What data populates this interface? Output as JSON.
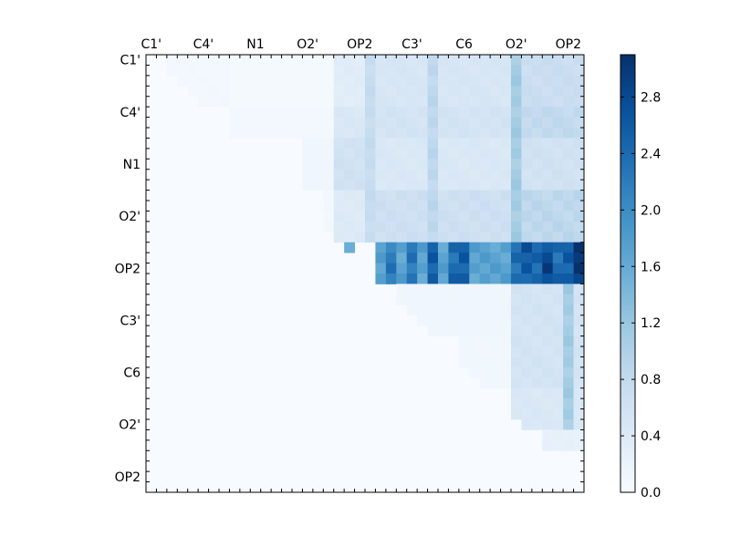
{
  "chart_data": {
    "type": "heatmap",
    "title": "",
    "xlabel": "",
    "ylabel": "",
    "n": 42,
    "x_tick_labels": [
      "C1'",
      "C4'",
      "N1",
      "O2'",
      "OP2",
      "C3'",
      "C6",
      "O2'",
      "OP2"
    ],
    "y_tick_labels": [
      "C1'",
      "C4'",
      "N1",
      "O2'",
      "OP2",
      "C3'",
      "C6",
      "O2'",
      "OP2"
    ],
    "tick_positions": [
      0.5,
      5.5,
      10.5,
      15.5,
      20.5,
      25.5,
      30.5,
      35.5,
      40.5
    ],
    "colorscale": [
      "#f7fbff",
      "#deebf7",
      "#c6dbef",
      "#9ecae1",
      "#6baed6",
      "#4292c6",
      "#2171b5",
      "#08519c",
      "#08306b"
    ],
    "zlim": [
      0,
      3.1
    ],
    "colorbar_ticks": [
      "0.0",
      "0.4",
      "0.8",
      "1.2",
      "1.6",
      "2.0",
      "2.4",
      "2.8"
    ],
    "colorbar_tick_values": [
      0.0,
      0.4,
      0.8,
      1.2,
      1.6,
      2.0,
      2.4,
      2.8
    ],
    "blocks": [
      {
        "r0": 0,
        "r1": 5,
        "c0": 2,
        "c1": 8,
        "v": 0.08
      },
      {
        "r0": 0,
        "r1": 5,
        "c0": 8,
        "c1": 18,
        "v": 0.05
      },
      {
        "r0": 0,
        "r1": 5,
        "c0": 18,
        "c1": 21,
        "v": 0.35
      },
      {
        "r0": 0,
        "r1": 5,
        "c0": 21,
        "c1": 35,
        "v": 0.5
      },
      {
        "r0": 0,
        "r1": 5,
        "c0": 35,
        "c1": 42,
        "v": 0.7
      },
      {
        "r0": 5,
        "r1": 8,
        "c0": 8,
        "c1": 18,
        "v": 0.07
      },
      {
        "r0": 5,
        "r1": 8,
        "c0": 18,
        "c1": 21,
        "v": 0.45
      },
      {
        "r0": 5,
        "r1": 8,
        "c0": 21,
        "c1": 35,
        "v": 0.55
      },
      {
        "r0": 5,
        "r1": 8,
        "c0": 35,
        "c1": 42,
        "v": 0.8
      },
      {
        "r0": 8,
        "r1": 13,
        "c0": 15,
        "c1": 18,
        "v": 0.12
      },
      {
        "r0": 8,
        "r1": 13,
        "c0": 18,
        "c1": 21,
        "v": 0.6
      },
      {
        "r0": 8,
        "r1": 13,
        "c0": 21,
        "c1": 35,
        "v": 0.45
      },
      {
        "r0": 8,
        "r1": 13,
        "c0": 35,
        "c1": 42,
        "v": 0.6
      },
      {
        "r0": 13,
        "r1": 18,
        "c0": 17,
        "c1": 18,
        "v": 0.08
      },
      {
        "r0": 13,
        "r1": 18,
        "c0": 18,
        "c1": 21,
        "v": 0.4
      },
      {
        "r0": 13,
        "r1": 18,
        "c0": 21,
        "c1": 35,
        "v": 0.65
      },
      {
        "r0": 13,
        "r1": 18,
        "c0": 35,
        "c1": 42,
        "v": 0.85
      },
      {
        "r0": 18,
        "r1": 22,
        "c0": 22,
        "c1": 35,
        "v": 1.7
      },
      {
        "r0": 18,
        "r1": 22,
        "c0": 35,
        "c1": 42,
        "v": 2.4
      },
      {
        "r0": 22,
        "r1": 27,
        "c0": 24,
        "c1": 35,
        "v": 0.12
      },
      {
        "r0": 22,
        "r1": 27,
        "c0": 35,
        "c1": 42,
        "v": 0.55
      },
      {
        "r0": 27,
        "r1": 32,
        "c0": 30,
        "c1": 35,
        "v": 0.1
      },
      {
        "r0": 27,
        "r1": 32,
        "c0": 35,
        "c1": 42,
        "v": 0.55
      },
      {
        "r0": 32,
        "r1": 36,
        "c0": 35,
        "c1": 42,
        "v": 0.45
      },
      {
        "r0": 36,
        "r1": 38,
        "c0": 38,
        "c1": 42,
        "v": 0.25
      }
    ],
    "columns": [
      {
        "c": 19,
        "r0": 18,
        "r1": 22,
        "v": 1.5
      },
      {
        "c": 21,
        "r0": 0,
        "r1": 18,
        "v": 0.75
      },
      {
        "c": 23,
        "r0": 18,
        "r1": 22,
        "v": 2.2
      },
      {
        "c": 25,
        "r0": 18,
        "r1": 22,
        "v": 2.3
      },
      {
        "c": 27,
        "r0": 18,
        "r1": 22,
        "v": 2.5
      },
      {
        "c": 27,
        "r0": 0,
        "r1": 18,
        "v": 0.85
      },
      {
        "c": 29,
        "r0": 18,
        "r1": 22,
        "v": 2.4
      },
      {
        "c": 30,
        "r0": 18,
        "r1": 22,
        "v": 2.6
      },
      {
        "c": 35,
        "r0": 0,
        "r1": 18,
        "v": 1.1
      },
      {
        "c": 36,
        "r0": 18,
        "r1": 22,
        "v": 2.6
      },
      {
        "c": 38,
        "r0": 18,
        "r1": 22,
        "v": 2.8
      },
      {
        "c": 40,
        "r0": 18,
        "r1": 22,
        "v": 2.6
      },
      {
        "c": 41,
        "r0": 18,
        "r1": 22,
        "v": 3.1
      },
      {
        "c": 40,
        "r0": 22,
        "r1": 36,
        "v": 1.1
      }
    ]
  }
}
